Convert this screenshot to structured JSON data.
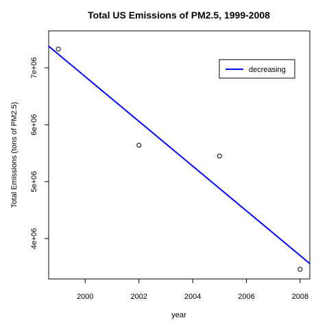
{
  "chart_data": {
    "type": "scatter",
    "title": "Total US Emissions of PM2.5, 1999-2008",
    "xlabel": "year",
    "ylabel": "Total Emissions (tons of PM2.5)",
    "xlim": [
      1998.64,
      2008.36
    ],
    "ylim": [
      3290000,
      7650000
    ],
    "x_ticks": [
      2000,
      2002,
      2004,
      2006,
      2008
    ],
    "x_tick_labels": [
      "2000",
      "2002",
      "2004",
      "2006",
      "2008"
    ],
    "y_ticks": [
      4000000,
      5000000,
      6000000,
      7000000
    ],
    "y_tick_labels": [
      "4e+06",
      "5e+06",
      "6e+06",
      "7e+06"
    ],
    "grid": false,
    "legend_position": "top-right",
    "points": [
      {
        "x": 1999,
        "y": 7330000
      },
      {
        "x": 2002,
        "y": 5640000
      },
      {
        "x": 2005,
        "y": 5450000
      },
      {
        "x": 2008,
        "y": 3460000
      }
    ],
    "trend_line": {
      "name": "decreasing",
      "color": "#0000ff",
      "intercept_at_1998_64": 7380000,
      "value_at_2008_36": 3560000,
      "start": {
        "x": 1998.64,
        "y": 7380000
      },
      "end": {
        "x": 2008.36,
        "y": 3560000
      }
    },
    "point_color": "#000000"
  }
}
